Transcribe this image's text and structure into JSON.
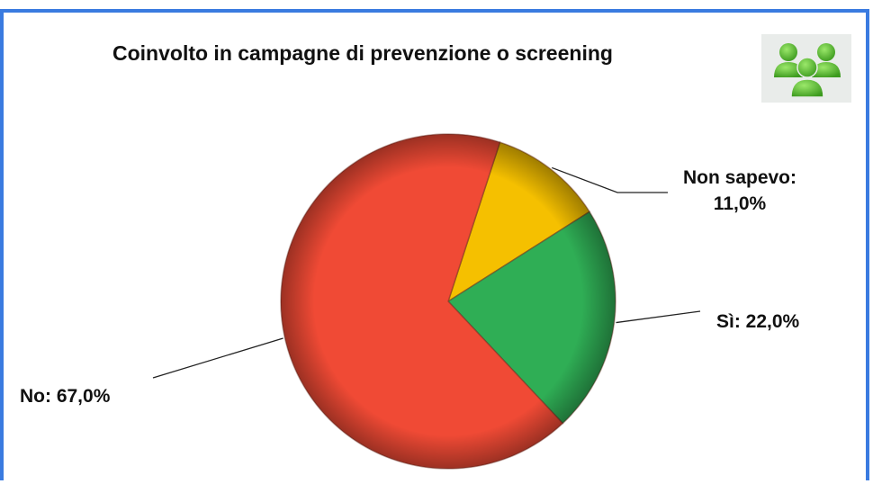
{
  "chart_data": {
    "type": "pie",
    "title": "Coinvolto in campagne di prevenzione o screening",
    "slices": [
      {
        "label": "Non sapevo:",
        "value_text": "11,0%",
        "value": 11.0,
        "color": "#f5c000"
      },
      {
        "label": "Sì:",
        "value_text": "22,0%",
        "value": 22.0,
        "color": "#2fae55"
      },
      {
        "label": "No:",
        "value_text": "67,0%",
        "value": 67.0,
        "color": "#f04a35"
      }
    ],
    "legend": "none"
  },
  "icons": {
    "header": "people-group-icon"
  }
}
